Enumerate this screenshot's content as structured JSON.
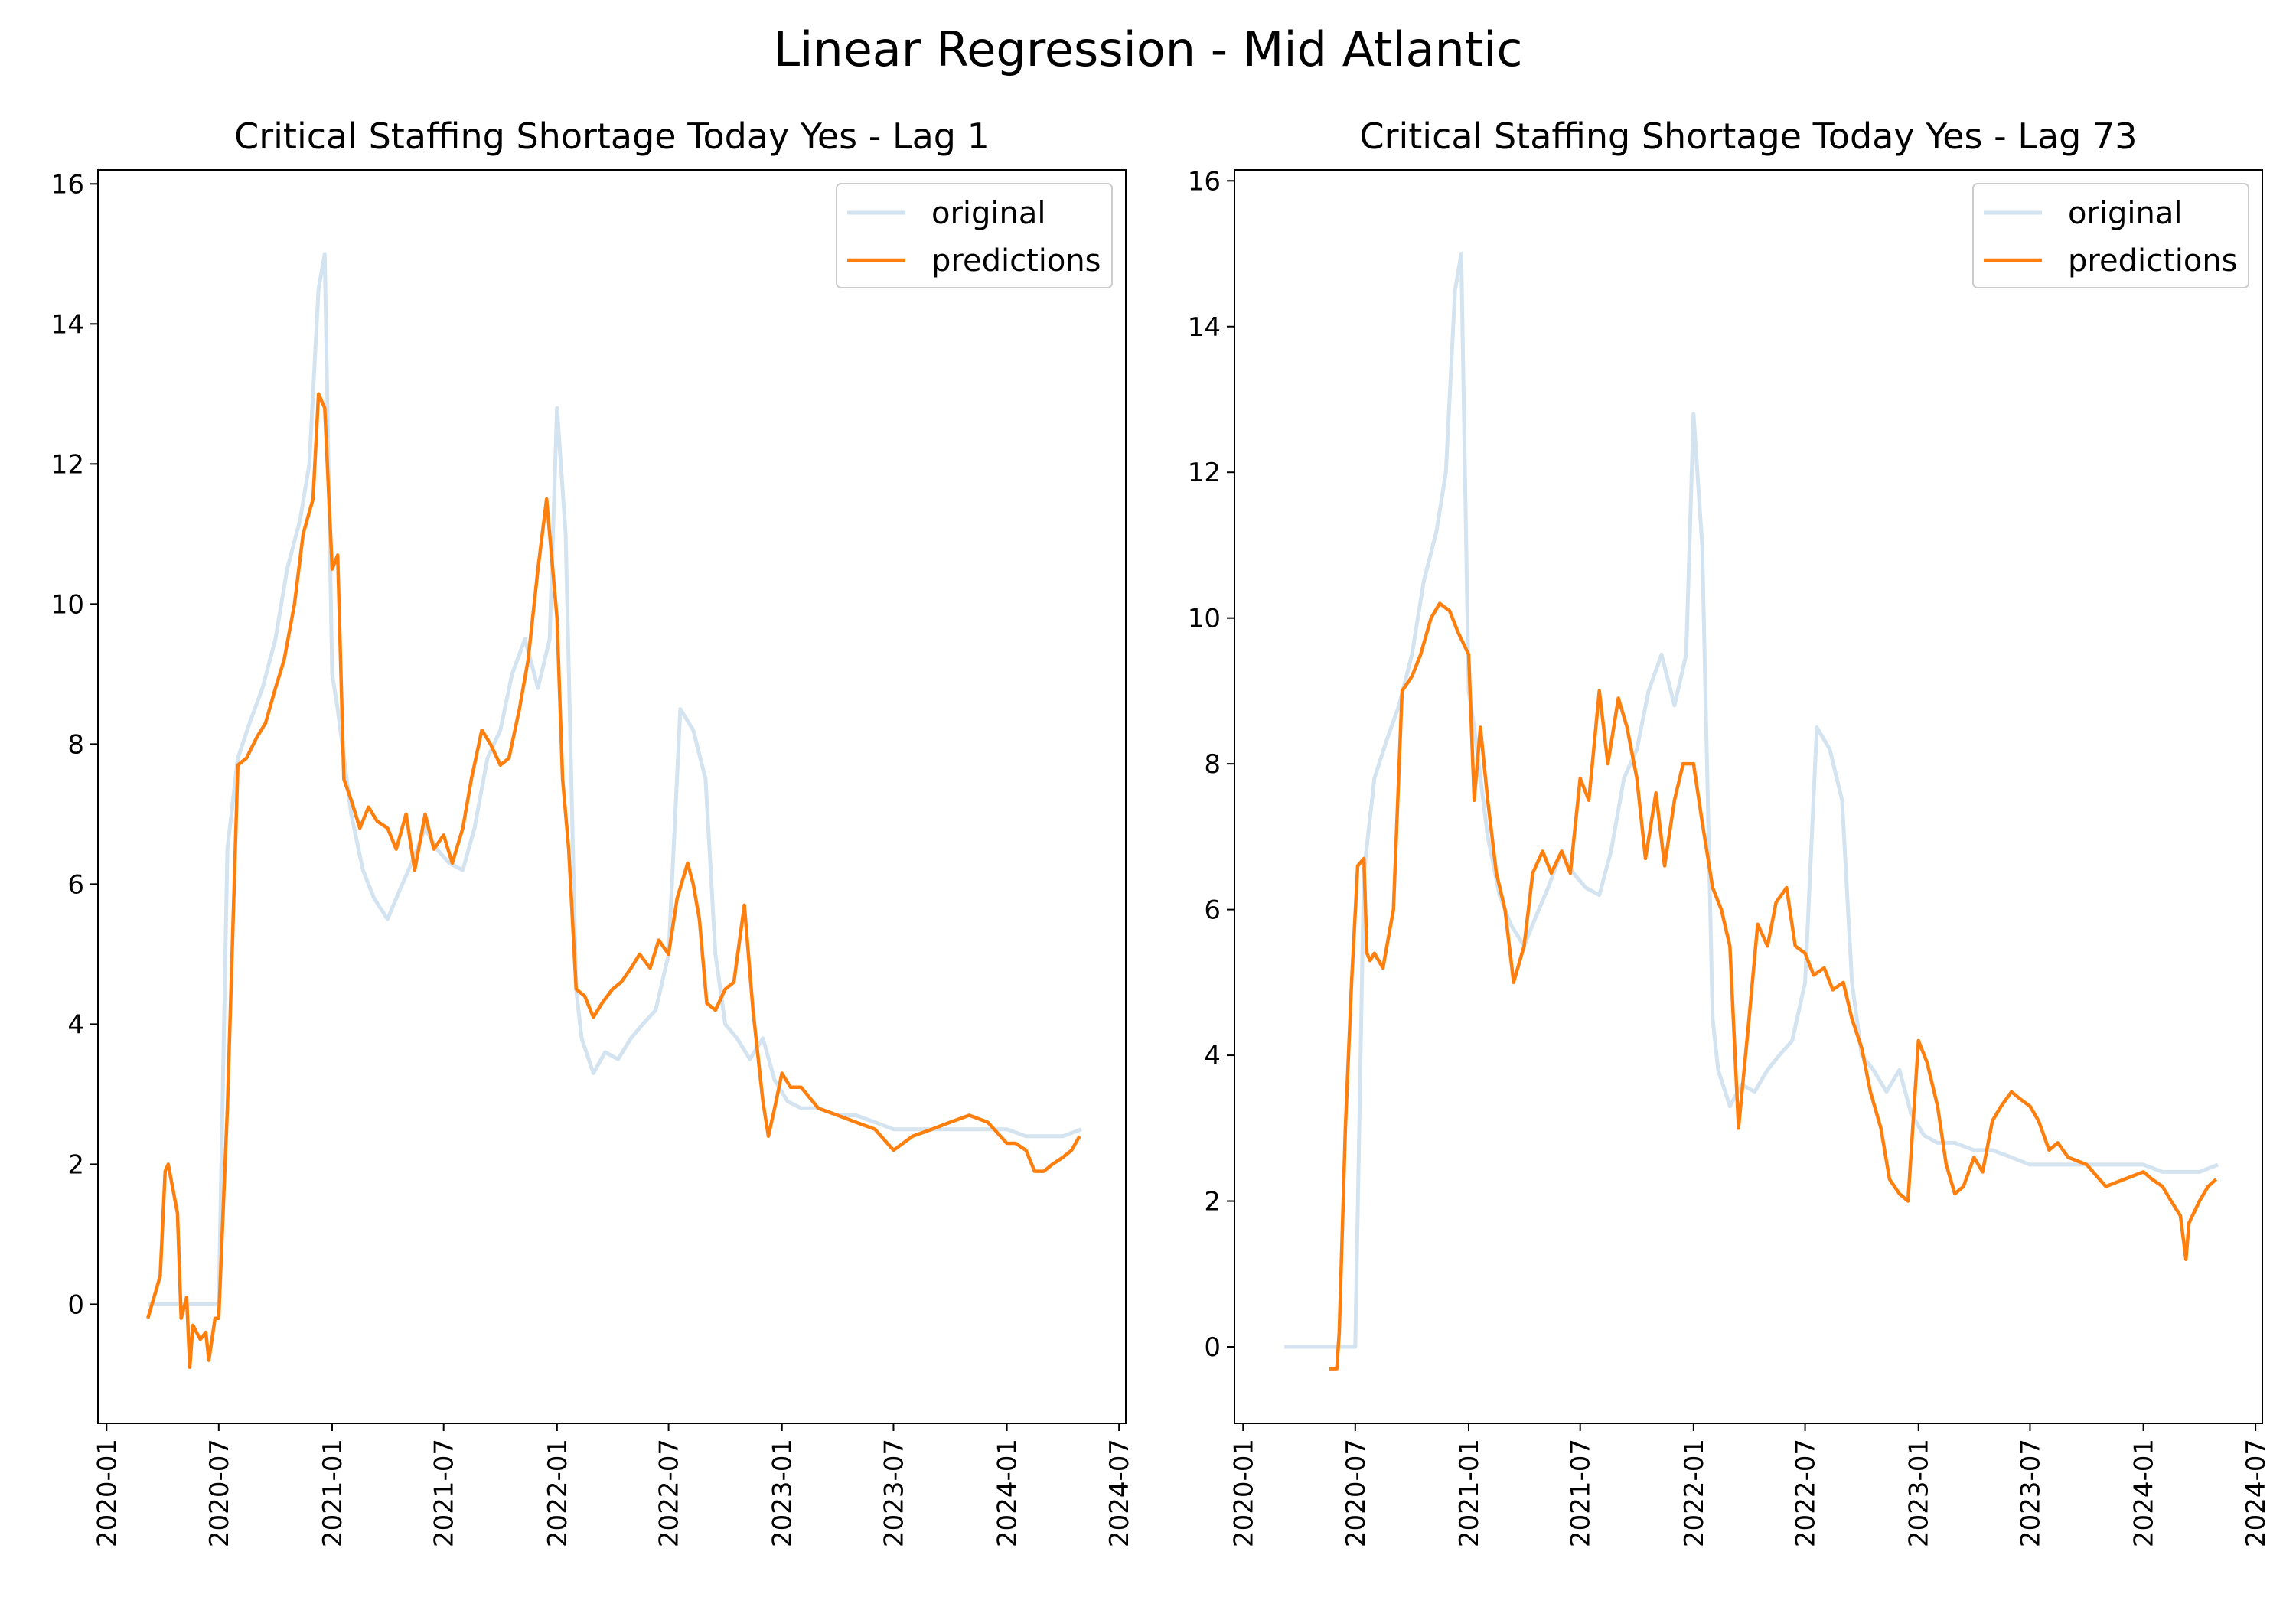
{
  "figure": {
    "suptitle": "Linear Regression - Mid Atlantic"
  },
  "chart_data": [
    {
      "type": "line",
      "title": "Critical Staffing Shortage Today Yes - Lag 1",
      "xlabel": "",
      "ylabel": "",
      "xlim": [
        "2019-12-18",
        "2024-07-12"
      ],
      "ylim": [
        -1.7,
        16.2
      ],
      "x_ticks": [
        "2020-01",
        "2020-07",
        "2021-01",
        "2021-07",
        "2022-01",
        "2022-07",
        "2023-01",
        "2023-07",
        "2024-01",
        "2024-07"
      ],
      "y_ticks": [
        0,
        2,
        4,
        6,
        8,
        10,
        12,
        14,
        16
      ],
      "legend": {
        "placement": "top-right",
        "entries": [
          "original",
          "predictions"
        ]
      },
      "colors": {
        "original": "#d3e3ef",
        "predictions": "#ff7f0e"
      },
      "series": [
        {
          "name": "original",
          "x": [
            "2020-03-08",
            "2020-07-01",
            "2020-07-15",
            "2020-08-01",
            "2020-08-20",
            "2020-09-10",
            "2020-10-01",
            "2020-10-20",
            "2020-11-10",
            "2020-11-25",
            "2020-12-10",
            "2020-12-20",
            "2021-01-01",
            "2021-01-10",
            "2021-02-01",
            "2021-02-20",
            "2021-03-10",
            "2021-04-01",
            "2021-04-20",
            "2021-05-10",
            "2021-06-01",
            "2021-06-20",
            "2021-07-10",
            "2021-08-01",
            "2021-08-20",
            "2021-09-10",
            "2021-10-01",
            "2021-10-20",
            "2021-11-10",
            "2021-12-01",
            "2021-12-20",
            "2022-01-01",
            "2022-01-15",
            "2022-02-01",
            "2022-02-10",
            "2022-03-01",
            "2022-03-20",
            "2022-04-10",
            "2022-05-01",
            "2022-05-20",
            "2022-06-10",
            "2022-07-01",
            "2022-07-20",
            "2022-08-10",
            "2022-08-30",
            "2022-09-15",
            "2022-10-01",
            "2022-10-20",
            "2022-11-10",
            "2022-12-01",
            "2022-12-20",
            "2023-01-10",
            "2023-02-01",
            "2023-03-01",
            "2023-04-01",
            "2023-05-01",
            "2023-06-01",
            "2023-07-01",
            "2023-08-01",
            "2023-09-01",
            "2023-10-01",
            "2023-11-01",
            "2023-12-01",
            "2024-01-01",
            "2024-02-01",
            "2024-03-01",
            "2024-04-01",
            "2024-05-01"
          ],
          "y": [
            0,
            0,
            6.5,
            7.8,
            8.3,
            8.8,
            9.5,
            10.5,
            11.2,
            12,
            14.5,
            15,
            9,
            8.5,
            7,
            6.2,
            5.8,
            5.5,
            5.9,
            6.3,
            6.8,
            6.5,
            6.3,
            6.2,
            6.8,
            7.8,
            8.2,
            9,
            9.5,
            8.8,
            9.5,
            12.8,
            11,
            4.5,
            3.8,
            3.3,
            3.6,
            3.5,
            3.8,
            4,
            4.2,
            5,
            8.5,
            8.2,
            7.5,
            5,
            4,
            3.8,
            3.5,
            3.8,
            3.2,
            2.9,
            2.8,
            2.8,
            2.7,
            2.7,
            2.6,
            2.5,
            2.5,
            2.5,
            2.5,
            2.5,
            2.5,
            2.5,
            2.4,
            2.4,
            2.4,
            2.5
          ]
        },
        {
          "name": "predictions",
          "x": [
            "2020-03-08",
            "2020-03-28",
            "2020-04-05",
            "2020-04-10",
            "2020-04-25",
            "2020-05-01",
            "2020-05-10",
            "2020-05-15",
            "2020-05-20",
            "2020-06-01",
            "2020-06-10",
            "2020-06-15",
            "2020-06-25",
            "2020-07-01",
            "2020-07-15",
            "2020-08-01",
            "2020-08-15",
            "2020-09-01",
            "2020-09-15",
            "2020-10-01",
            "2020-10-15",
            "2020-11-01",
            "2020-11-15",
            "2020-12-01",
            "2020-12-10",
            "2020-12-20",
            "2021-01-01",
            "2021-01-10",
            "2021-01-20",
            "2021-02-01",
            "2021-02-15",
            "2021-03-01",
            "2021-03-15",
            "2021-04-01",
            "2021-04-15",
            "2021-05-01",
            "2021-05-15",
            "2021-06-01",
            "2021-06-15",
            "2021-07-01",
            "2021-07-15",
            "2021-08-01",
            "2021-08-15",
            "2021-09-01",
            "2021-09-15",
            "2021-10-01",
            "2021-10-15",
            "2021-11-01",
            "2021-11-15",
            "2021-12-01",
            "2021-12-15",
            "2022-01-01",
            "2022-01-10",
            "2022-01-20",
            "2022-02-01",
            "2022-02-15",
            "2022-03-01",
            "2022-03-15",
            "2022-04-01",
            "2022-04-15",
            "2022-05-01",
            "2022-05-15",
            "2022-06-01",
            "2022-06-15",
            "2022-07-01",
            "2022-07-15",
            "2022-08-01",
            "2022-08-10",
            "2022-08-20",
            "2022-09-01",
            "2022-09-15",
            "2022-10-01",
            "2022-10-15",
            "2022-11-01",
            "2022-11-15",
            "2022-12-01",
            "2022-12-10",
            "2022-12-20",
            "2023-01-01",
            "2023-01-15",
            "2023-02-01",
            "2023-03-01",
            "2023-04-01",
            "2023-05-01",
            "2023-06-01",
            "2023-07-01",
            "2023-08-01",
            "2023-09-01",
            "2023-10-01",
            "2023-11-01",
            "2023-12-01",
            "2024-01-01",
            "2024-01-15",
            "2024-02-01",
            "2024-02-15",
            "2024-03-01",
            "2024-03-15",
            "2024-04-01",
            "2024-04-15",
            "2024-04-28"
          ],
          "y": [
            -0.2,
            0.4,
            1.9,
            2,
            1.3,
            -0.2,
            0.1,
            -0.9,
            -0.3,
            -0.5,
            -0.4,
            -0.8,
            -0.2,
            -0.2,
            2.8,
            7.7,
            7.8,
            8.1,
            8.3,
            8.8,
            9.2,
            10,
            11,
            11.5,
            13,
            12.8,
            10.5,
            10.7,
            7.5,
            7.2,
            6.8,
            7.1,
            6.9,
            6.8,
            6.5,
            7,
            6.2,
            7,
            6.5,
            6.7,
            6.3,
            6.8,
            7.5,
            8.2,
            8,
            7.7,
            7.8,
            8.5,
            9.2,
            10.5,
            11.5,
            9.8,
            7.5,
            6.5,
            4.5,
            4.4,
            4.1,
            4.3,
            4.5,
            4.6,
            4.8,
            5,
            4.8,
            5.2,
            5,
            5.8,
            6.3,
            6,
            5.5,
            4.3,
            4.2,
            4.5,
            4.6,
            5.7,
            4.2,
            2.9,
            2.4,
            2.8,
            3.3,
            3.1,
            3.1,
            2.8,
            2.7,
            2.6,
            2.5,
            2.2,
            2.4,
            2.5,
            2.6,
            2.7,
            2.6,
            2.3,
            2.3,
            2.2,
            1.9,
            1.9,
            2,
            2.1,
            2.2,
            2.4
          ]
        }
      ]
    },
    {
      "type": "line",
      "title": "Critical Staffing Shortage Today Yes - Lag 73",
      "xlabel": "",
      "ylabel": "",
      "xlim": [
        "2019-12-18",
        "2024-07-12"
      ],
      "ylim": [
        -1.05,
        16.15
      ],
      "x_ticks": [
        "2020-01",
        "2020-07",
        "2021-01",
        "2021-07",
        "2022-01",
        "2022-07",
        "2023-01",
        "2023-07",
        "2024-01",
        "2024-07"
      ],
      "y_ticks": [
        0,
        2,
        4,
        6,
        8,
        10,
        12,
        14,
        16
      ],
      "legend": {
        "placement": "top-right",
        "entries": [
          "original",
          "predictions"
        ]
      },
      "colors": {
        "original": "#d3e3ef",
        "predictions": "#ff7f0e"
      },
      "series": [
        {
          "name": "original",
          "x": [
            "2020-03-08",
            "2020-07-01",
            "2020-07-15",
            "2020-08-01",
            "2020-08-20",
            "2020-09-10",
            "2020-10-01",
            "2020-10-20",
            "2020-11-10",
            "2020-11-25",
            "2020-12-10",
            "2020-12-20",
            "2021-01-01",
            "2021-01-10",
            "2021-02-01",
            "2021-02-20",
            "2021-03-10",
            "2021-04-01",
            "2021-04-20",
            "2021-05-10",
            "2021-06-01",
            "2021-06-20",
            "2021-07-10",
            "2021-08-01",
            "2021-08-20",
            "2021-09-10",
            "2021-10-01",
            "2021-10-20",
            "2021-11-10",
            "2021-12-01",
            "2021-12-20",
            "2022-01-01",
            "2022-01-15",
            "2022-02-01",
            "2022-02-10",
            "2022-03-01",
            "2022-03-20",
            "2022-04-10",
            "2022-05-01",
            "2022-05-20",
            "2022-06-10",
            "2022-07-01",
            "2022-07-20",
            "2022-08-10",
            "2022-08-30",
            "2022-09-15",
            "2022-10-01",
            "2022-10-20",
            "2022-11-10",
            "2022-12-01",
            "2022-12-20",
            "2023-01-10",
            "2023-02-01",
            "2023-03-01",
            "2023-04-01",
            "2023-05-01",
            "2023-06-01",
            "2023-07-01",
            "2023-08-01",
            "2023-09-01",
            "2023-10-01",
            "2023-11-01",
            "2023-12-01",
            "2024-01-01",
            "2024-02-01",
            "2024-03-01",
            "2024-04-01",
            "2024-05-01"
          ],
          "y": [
            0,
            0,
            6.5,
            7.8,
            8.3,
            8.8,
            9.5,
            10.5,
            11.2,
            12,
            14.5,
            15,
            9,
            8.5,
            7,
            6.2,
            5.8,
            5.5,
            5.9,
            6.3,
            6.8,
            6.5,
            6.3,
            6.2,
            6.8,
            7.8,
            8.2,
            9,
            9.5,
            8.8,
            9.5,
            12.8,
            11,
            4.5,
            3.8,
            3.3,
            3.6,
            3.5,
            3.8,
            4,
            4.2,
            5,
            8.5,
            8.2,
            7.5,
            5,
            4,
            3.8,
            3.5,
            3.8,
            3.2,
            2.9,
            2.8,
            2.8,
            2.7,
            2.7,
            2.6,
            2.5,
            2.5,
            2.5,
            2.5,
            2.5,
            2.5,
            2.5,
            2.4,
            2.4,
            2.4,
            2.5
          ]
        },
        {
          "name": "predictions",
          "x": [
            "2020-05-20",
            "2020-06-01",
            "2020-06-05",
            "2020-06-15",
            "2020-06-25",
            "2020-07-05",
            "2020-07-15",
            "2020-07-20",
            "2020-07-25",
            "2020-08-01",
            "2020-08-15",
            "2020-09-01",
            "2020-09-15",
            "2020-10-01",
            "2020-10-15",
            "2020-11-01",
            "2020-11-15",
            "2020-12-01",
            "2020-12-15",
            "2021-01-01",
            "2021-01-10",
            "2021-01-20",
            "2021-02-01",
            "2021-02-15",
            "2021-03-01",
            "2021-03-15",
            "2021-04-01",
            "2021-04-15",
            "2021-05-01",
            "2021-05-15",
            "2021-06-01",
            "2021-06-15",
            "2021-07-01",
            "2021-07-15",
            "2021-08-01",
            "2021-08-15",
            "2021-09-01",
            "2021-09-15",
            "2021-10-01",
            "2021-10-15",
            "2021-11-01",
            "2021-11-15",
            "2021-12-01",
            "2021-12-15",
            "2022-01-01",
            "2022-01-15",
            "2022-02-01",
            "2022-02-15",
            "2022-03-01",
            "2022-03-15",
            "2022-04-01",
            "2022-04-15",
            "2022-05-01",
            "2022-05-15",
            "2022-06-01",
            "2022-06-15",
            "2022-07-01",
            "2022-07-15",
            "2022-08-01",
            "2022-08-15",
            "2022-09-01",
            "2022-09-15",
            "2022-10-01",
            "2022-10-15",
            "2022-11-01",
            "2022-11-15",
            "2022-12-01",
            "2022-12-15",
            "2023-01-01",
            "2023-01-15",
            "2023-02-01",
            "2023-02-15",
            "2023-03-01",
            "2023-03-15",
            "2023-04-01",
            "2023-04-15",
            "2023-05-01",
            "2023-05-15",
            "2023-06-01",
            "2023-06-15",
            "2023-07-01",
            "2023-07-15",
            "2023-08-01",
            "2023-08-15",
            "2023-09-01",
            "2023-10-01",
            "2023-11-01",
            "2023-12-01",
            "2024-01-01",
            "2024-01-15",
            "2024-02-01",
            "2024-02-15",
            "2024-03-01",
            "2024-03-10",
            "2024-03-15",
            "2024-04-01",
            "2024-04-15",
            "2024-04-28"
          ],
          "y": [
            -0.3,
            -0.3,
            0.2,
            3,
            5,
            6.6,
            6.7,
            5.4,
            5.3,
            5.4,
            5.2,
            6,
            9,
            9.2,
            9.5,
            10,
            10.2,
            10.1,
            9.8,
            9.5,
            7.5,
            8.5,
            7.5,
            6.5,
            6,
            5,
            5.5,
            6.5,
            6.8,
            6.5,
            6.8,
            6.5,
            7.8,
            7.5,
            9,
            8,
            8.9,
            8.5,
            7.8,
            6.7,
            7.6,
            6.6,
            7.5,
            8,
            8,
            7.2,
            6.3,
            6,
            5.5,
            3,
            4.5,
            5.8,
            5.5,
            6.1,
            6.3,
            5.5,
            5.4,
            5.1,
            5.2,
            4.9,
            5,
            4.5,
            4.1,
            3.5,
            3,
            2.3,
            2.1,
            2,
            4.2,
            3.9,
            3.3,
            2.5,
            2.1,
            2.2,
            2.6,
            2.4,
            3.1,
            3.3,
            3.5,
            3.4,
            3.3,
            3.1,
            2.7,
            2.8,
            2.6,
            2.5,
            2.2,
            2.3,
            2.4,
            2.3,
            2.2,
            2,
            1.8,
            1.2,
            1.7,
            2,
            2.2,
            2.3
          ]
        }
      ]
    }
  ]
}
